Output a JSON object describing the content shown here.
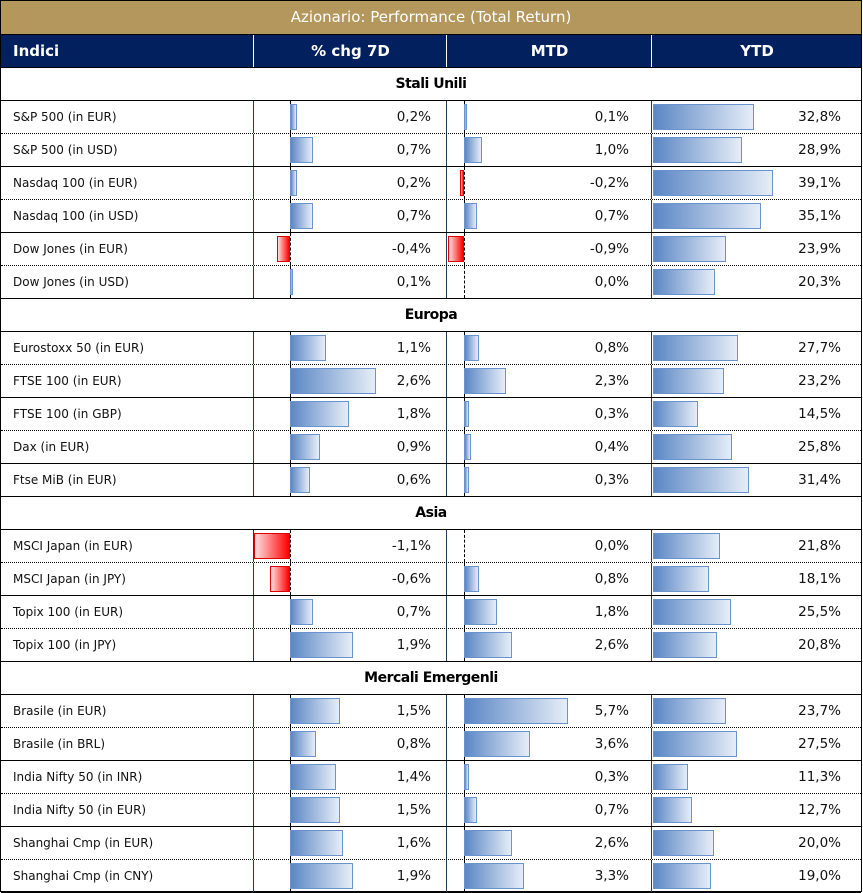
{
  "title": "Azionario: Performance (Total Return)",
  "columns": [
    "Indici",
    "% chg 7D",
    "MTD",
    "YTD"
  ],
  "colors": {
    "title_bg": "#b3975d",
    "header_bg": "#03205e",
    "positive_bar": "#5b87c5",
    "negative_bar": "#ff0000"
  },
  "sections": [
    {
      "name": "Stali Unili",
      "rows": [
        {
          "index": "S&P 500 (in EUR)",
          "chg7d": 0.2,
          "chg7d_label": "0,2%",
          "mtd": 0.1,
          "mtd_label": "0,1%",
          "ytd": 32.8,
          "ytd_label": "32,8%"
        },
        {
          "index": "S&P 500 (in USD)",
          "chg7d": 0.7,
          "chg7d_label": "0,7%",
          "mtd": 1.0,
          "mtd_label": "1,0%",
          "ytd": 28.9,
          "ytd_label": "28,9%"
        },
        {
          "index": "Nasdaq 100 (in EUR)",
          "chg7d": 0.2,
          "chg7d_label": "0,2%",
          "mtd": -0.2,
          "mtd_label": "-0,2%",
          "ytd": 39.1,
          "ytd_label": "39,1%"
        },
        {
          "index": "Nasdaq 100 (in USD)",
          "chg7d": 0.7,
          "chg7d_label": "0,7%",
          "mtd": 0.7,
          "mtd_label": "0,7%",
          "ytd": 35.1,
          "ytd_label": "35,1%"
        },
        {
          "index": "Dow Jones (in EUR)",
          "chg7d": -0.4,
          "chg7d_label": "-0,4%",
          "mtd": -0.9,
          "mtd_label": "-0,9%",
          "ytd": 23.9,
          "ytd_label": "23,9%"
        },
        {
          "index": "Dow Jones (in USD)",
          "chg7d": 0.1,
          "chg7d_label": "0,1%",
          "mtd": 0.0,
          "mtd_label": "0,0%",
          "ytd": 20.3,
          "ytd_label": "20,3%"
        }
      ]
    },
    {
      "name": "Europa",
      "rows": [
        {
          "index": "Eurostoxx 50 (in EUR)",
          "chg7d": 1.1,
          "chg7d_label": "1,1%",
          "mtd": 0.8,
          "mtd_label": "0,8%",
          "ytd": 27.7,
          "ytd_label": "27,7%"
        },
        {
          "index": "FTSE 100 (in EUR)",
          "chg7d": 2.6,
          "chg7d_label": "2,6%",
          "mtd": 2.3,
          "mtd_label": "2,3%",
          "ytd": 23.2,
          "ytd_label": "23,2%"
        },
        {
          "index": "FTSE 100 (in GBP)",
          "chg7d": 1.8,
          "chg7d_label": "1,8%",
          "mtd": 0.3,
          "mtd_label": "0,3%",
          "ytd": 14.5,
          "ytd_label": "14,5%"
        },
        {
          "index": "Dax (in EUR)",
          "chg7d": 0.9,
          "chg7d_label": "0,9%",
          "mtd": 0.4,
          "mtd_label": "0,4%",
          "ytd": 25.8,
          "ytd_label": "25,8%"
        },
        {
          "index": "Ftse MiB (in EUR)",
          "chg7d": 0.6,
          "chg7d_label": "0,6%",
          "mtd": 0.3,
          "mtd_label": "0,3%",
          "ytd": 31.4,
          "ytd_label": "31,4%"
        }
      ]
    },
    {
      "name": "Asia",
      "rows": [
        {
          "index": "MSCI Japan (in EUR)",
          "chg7d": -1.1,
          "chg7d_label": "-1,1%",
          "mtd": 0.0,
          "mtd_label": "0,0%",
          "ytd": 21.8,
          "ytd_label": "21,8%"
        },
        {
          "index": "MSCI Japan (in JPY)",
          "chg7d": -0.6,
          "chg7d_label": "-0,6%",
          "mtd": 0.8,
          "mtd_label": "0,8%",
          "ytd": 18.1,
          "ytd_label": "18,1%"
        },
        {
          "index": "Topix 100 (in EUR)",
          "chg7d": 0.7,
          "chg7d_label": "0,7%",
          "mtd": 1.8,
          "mtd_label": "1,8%",
          "ytd": 25.5,
          "ytd_label": "25,5%"
        },
        {
          "index": "Topix 100 (in JPY)",
          "chg7d": 1.9,
          "chg7d_label": "1,9%",
          "mtd": 2.6,
          "mtd_label": "2,6%",
          "ytd": 20.8,
          "ytd_label": "20,8%"
        }
      ]
    },
    {
      "name": "Mercali Emergenli",
      "rows": [
        {
          "index": "Brasile (in EUR)",
          "chg7d": 1.5,
          "chg7d_label": "1,5%",
          "mtd": 5.7,
          "mtd_label": "5,7%",
          "ytd": 23.7,
          "ytd_label": "23,7%"
        },
        {
          "index": "Brasile (in BRL)",
          "chg7d": 0.8,
          "chg7d_label": "0,8%",
          "mtd": 3.6,
          "mtd_label": "3,6%",
          "ytd": 27.5,
          "ytd_label": "27,5%"
        },
        {
          "index": "India Nifty 50 (in INR)",
          "chg7d": 1.4,
          "chg7d_label": "1,4%",
          "mtd": 0.3,
          "mtd_label": "0,3%",
          "ytd": 11.3,
          "ytd_label": "11,3%"
        },
        {
          "index": "India Nifty 50 (in EUR)",
          "chg7d": 1.5,
          "chg7d_label": "1,5%",
          "mtd": 0.7,
          "mtd_label": "0,7%",
          "ytd": 12.7,
          "ytd_label": "12,7%"
        },
        {
          "index": "Shanghai Cmp (in EUR)",
          "chg7d": 1.6,
          "chg7d_label": "1,6%",
          "mtd": 2.6,
          "mtd_label": "2,6%",
          "ytd": 20.0,
          "ytd_label": "20,0%"
        },
        {
          "index": "Shanghai Cmp (in CNY)",
          "chg7d": 1.9,
          "chg7d_label": "1,9%",
          "mtd": 3.3,
          "mtd_label": "3,3%",
          "ytd": 19.0,
          "ytd_label": "19,0%"
        }
      ]
    }
  ]
}
